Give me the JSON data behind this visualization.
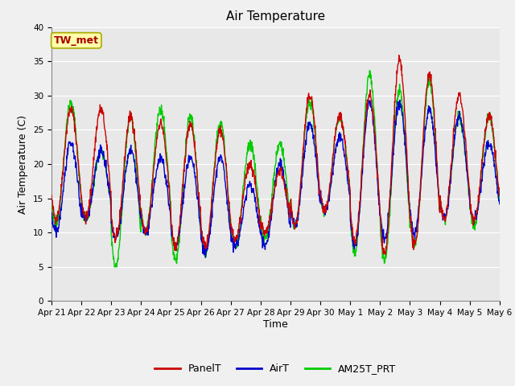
{
  "title": "Air Temperature",
  "xlabel": "Time",
  "ylabel": "Air Temperature (C)",
  "ylim": [
    0,
    40
  ],
  "yticks": [
    0,
    5,
    10,
    15,
    20,
    25,
    30,
    35,
    40
  ],
  "xlabels": [
    "Apr 21",
    "Apr 22",
    "Apr 23",
    "Apr 24",
    "Apr 25",
    "Apr 26",
    "Apr 27",
    "Apr 28",
    "Apr 29",
    "Apr 30",
    "May 1",
    "May 2",
    "May 3",
    "May 4",
    "May 5",
    "May 6"
  ],
  "legend_labels": [
    "PanelT",
    "AirT",
    "AM25T_PRT"
  ],
  "legend_colors": [
    "#cc0000",
    "#0000cc",
    "#00cc00"
  ],
  "annotation_text": "TW_met",
  "annotation_bg": "#ffffaa",
  "annotation_border": "#aaaa00",
  "annotation_text_color": "#aa0000",
  "plot_bg_color": "#e8e8e8",
  "fig_bg_color": "#f0f0f0",
  "grid_color": "#ffffff",
  "title_fontsize": 11,
  "axis_label_fontsize": 9,
  "tick_fontsize": 7.5,
  "legend_fontsize": 9,
  "line_width": 1.0,
  "panel_day_min": [
    12,
    12,
    9,
    10,
    8,
    8,
    9,
    10,
    11,
    13,
    9,
    7,
    8,
    12,
    12
  ],
  "panel_day_max": [
    28,
    28,
    27,
    26,
    26,
    25,
    20,
    19,
    30,
    27,
    30,
    35,
    33,
    30,
    27
  ],
  "air_day_min": [
    10,
    12,
    9,
    10,
    8,
    7,
    8,
    8,
    11,
    13,
    8,
    9,
    10,
    12,
    12
  ],
  "air_day_max": [
    23,
    22,
    22,
    21,
    21,
    21,
    17,
    20,
    26,
    24,
    29,
    29,
    28,
    27,
    23
  ],
  "am25_day_min": [
    11,
    12,
    5,
    10,
    6,
    7,
    8,
    9,
    11,
    13,
    7,
    6,
    8,
    12,
    11
  ],
  "am25_day_max": [
    29,
    22,
    27,
    28,
    27,
    26,
    23,
    23,
    29,
    27,
    33,
    31,
    32,
    27,
    27
  ]
}
